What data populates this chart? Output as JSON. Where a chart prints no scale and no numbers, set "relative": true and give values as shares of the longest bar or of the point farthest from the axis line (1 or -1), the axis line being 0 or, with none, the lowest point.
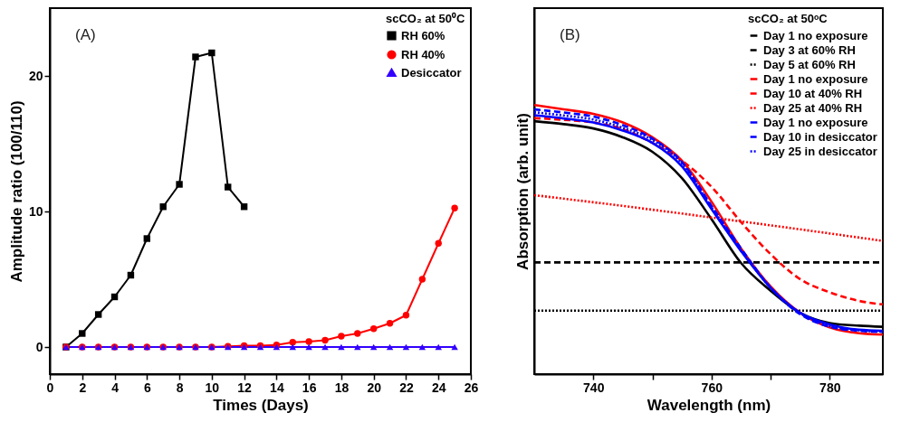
{
  "chart_data": [
    {
      "type": "line",
      "xlabel": "Times (Days)",
      "ylabel": "Amplitude ratio (100/110)",
      "legend_title": "scCO₂ at 50⁰C",
      "legend": "top right",
      "grid": false,
      "annotations": [
        "(A)"
      ],
      "x": [
        1,
        2,
        3,
        4,
        5,
        6,
        7,
        8,
        9,
        10,
        11,
        12,
        13,
        14,
        15,
        16,
        17,
        18,
        19,
        20,
        21,
        22,
        23,
        24,
        25
      ],
      "xlim": [
        0,
        26
      ],
      "ylim": [
        -2,
        25
      ],
      "xticks": [
        0,
        2,
        4,
        6,
        8,
        10,
        12,
        14,
        16,
        18,
        20,
        22,
        24,
        26
      ],
      "yticks": [
        0,
        10,
        20
      ],
      "series": [
        {
          "name": "RH 60%",
          "color": "#000000",
          "marker": "square",
          "x": [
            1,
            2,
            3,
            4,
            5,
            6,
            7,
            8,
            9,
            10,
            11,
            12
          ],
          "values": [
            0,
            1.0,
            2.4,
            3.7,
            5.3,
            8.0,
            10.35,
            12.0,
            21.4,
            21.7,
            11.8,
            10.35
          ]
        },
        {
          "name": "RH 40%",
          "color": "#ff0000",
          "marker": "circle",
          "values": [
            0,
            0,
            0,
            0,
            0,
            0,
            0,
            0,
            0,
            0,
            0.05,
            0.1,
            0.1,
            0.15,
            0.35,
            0.4,
            0.5,
            0.8,
            1.0,
            1.35,
            1.75,
            2.35,
            5.0,
            7.65,
            10.25
          ]
        },
        {
          "name": "Desiccator",
          "color": "#3300ff",
          "marker": "triangle",
          "values": [
            0,
            0,
            0,
            0,
            0,
            0,
            0,
            0,
            0,
            0,
            0,
            0,
            0,
            0,
            0,
            0,
            0,
            0,
            0,
            0,
            0,
            0,
            0,
            0,
            0
          ]
        }
      ]
    },
    {
      "type": "line",
      "relative": true,
      "xlabel": "Wavelength (nm)",
      "ylabel": "Absorption (arb. unit)",
      "legend_title": "scCO₂ at 50ᵒC",
      "legend": "top right",
      "grid": false,
      "annotations": [
        "(B)"
      ],
      "x": [
        730,
        735,
        740,
        745,
        750,
        755,
        760,
        765,
        770,
        775,
        780,
        785,
        789
      ],
      "xlim": [
        730,
        789
      ],
      "xticks": [
        740,
        {
          "value": 750,
          "label": null
        },
        760,
        {
          "value": 770,
          "label": null
        },
        780
      ],
      "series": [
        {
          "name": "Day 1 no exposure",
          "color": "#000000",
          "line_style": "solid",
          "values": [
            0.94,
            0.929,
            0.913,
            0.88,
            0.826,
            0.728,
            0.576,
            0.413,
            0.31,
            0.228,
            0.19,
            0.18,
            0.176
          ]
        },
        {
          "name": "Day 3 at 60% RH",
          "color": "#000000",
          "line_style": "dashed",
          "x": [
            730,
            789
          ],
          "values": [
            0.415,
            0.415
          ]
        },
        {
          "name": "Day 5 at 60% RH",
          "color": "#000000",
          "line_style": "dotted",
          "x": [
            730,
            789
          ],
          "values": [
            0.236,
            0.236
          ]
        },
        {
          "name": "Day 1 no exposure",
          "color": "#ff0000",
          "line_style": "solid",
          "values": [
            1.0,
            0.984,
            0.967,
            0.935,
            0.88,
            0.793,
            0.641,
            0.467,
            0.326,
            0.228,
            0.174,
            0.152,
            0.147
          ]
        },
        {
          "name": "Day 10 at 40% RH",
          "color": "#ff0000",
          "line_style": "dashed",
          "values": [
            0.951,
            0.945,
            0.935,
            0.91,
            0.859,
            0.793,
            0.696,
            0.565,
            0.446,
            0.353,
            0.304,
            0.272,
            0.259
          ]
        },
        {
          "name": "Day 25 at 40% RH",
          "color": "#ff0000",
          "line_style": "dotted",
          "x": [
            730,
            745,
            760,
            775,
            789
          ],
          "values": [
            0.665,
            0.625,
            0.582,
            0.538,
            0.495
          ]
        },
        {
          "name": "Day 1 no exposure",
          "color": "#0000ff",
          "line_style": "solid",
          "values": [
            0.962,
            0.95,
            0.935,
            0.905,
            0.859,
            0.772,
            0.614,
            0.457,
            0.321,
            0.228,
            0.185,
            0.165,
            0.161
          ]
        },
        {
          "name": "Day 10 in desiccator",
          "color": "#0000ff",
          "line_style": "dashed",
          "values": [
            0.984,
            0.972,
            0.957,
            0.925,
            0.875,
            0.788,
            0.625,
            0.467,
            0.321,
            0.223,
            0.176,
            0.161,
            0.157
          ]
        },
        {
          "name": "Day 25 in desiccator",
          "color": "#0000ff",
          "line_style": "dotted",
          "values": [
            0.973,
            0.961,
            0.946,
            0.915,
            0.87,
            0.783,
            0.62,
            0.462,
            0.321,
            0.226,
            0.179,
            0.163,
            0.158
          ]
        }
      ]
    }
  ]
}
